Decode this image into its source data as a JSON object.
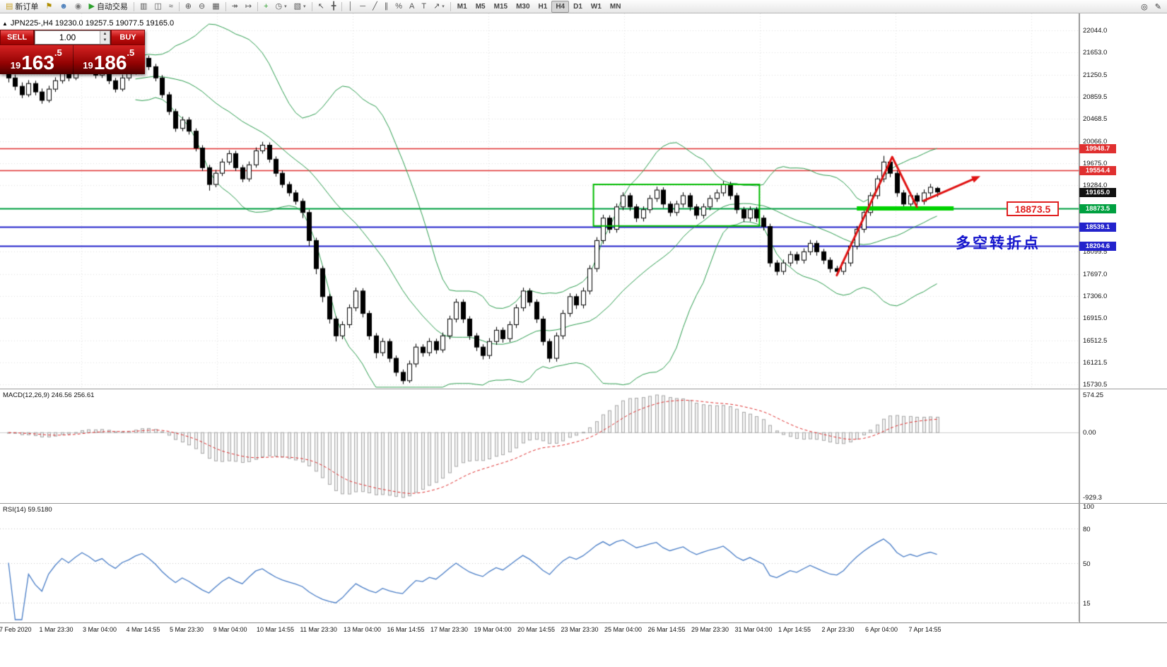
{
  "toolbar": {
    "groups": [
      {
        "items": [
          {
            "name": "new-order-button",
            "glyph": "▤",
            "color": "#c9a227",
            "label": "新订单"
          },
          {
            "name": "alerts-button",
            "glyph": "⚑",
            "color": "#b08d00"
          },
          {
            "name": "accounts-button",
            "glyph": "☻",
            "color": "#4a7ebb"
          },
          {
            "name": "market-watch-button",
            "glyph": "◉",
            "color": "#777777"
          },
          {
            "name": "auto-trading-button",
            "glyph": "▶",
            "color": "#2ca02c",
            "label": "自动交易"
          }
        ]
      },
      {
        "items": [
          {
            "name": "bar-chart-button",
            "glyph": "▥"
          },
          {
            "name": "candlestick-chart-button",
            "glyph": "◫"
          },
          {
            "name": "line-chart-button",
            "glyph": "≈"
          }
        ]
      },
      {
        "items": [
          {
            "name": "zoom-in-button",
            "glyph": "⊕"
          },
          {
            "name": "zoom-out-button",
            "glyph": "⊖"
          },
          {
            "name": "tile-windows-button",
            "glyph": "▦"
          }
        ]
      },
      {
        "items": [
          {
            "name": "auto-scroll-button",
            "glyph": "↠"
          },
          {
            "name": "chart-shift-button",
            "glyph": "↦"
          }
        ]
      },
      {
        "items": [
          {
            "name": "add-indicator-button",
            "glyph": "+",
            "color": "#2ca02c"
          },
          {
            "name": "periods-button",
            "glyph": "◷",
            "caret": true
          },
          {
            "name": "templates-button",
            "glyph": "▧",
            "caret": true
          }
        ]
      },
      {
        "items": [
          {
            "name": "cursor-button",
            "glyph": "↖"
          },
          {
            "name": "crosshair-button",
            "glyph": "╋"
          }
        ]
      },
      {
        "items": [
          {
            "name": "vertical-line-button",
            "glyph": "│"
          },
          {
            "name": "horizontal-line-button",
            "glyph": "─"
          },
          {
            "name": "trendline-button",
            "glyph": "╱"
          },
          {
            "name": "channel-button",
            "glyph": "∥"
          },
          {
            "name": "fibonacci-button",
            "glyph": "%"
          },
          {
            "name": "text-button",
            "glyph": "A"
          },
          {
            "name": "label-button",
            "glyph": "T"
          },
          {
            "name": "arrows-button",
            "glyph": "↗",
            "caret": true
          }
        ]
      }
    ],
    "timeframes": [
      {
        "label": "M1"
      },
      {
        "label": "M5"
      },
      {
        "label": "M15"
      },
      {
        "label": "M30"
      },
      {
        "label": "H1"
      },
      {
        "label": "H4"
      },
      {
        "label": "D1"
      },
      {
        "label": "W1"
      },
      {
        "label": "MN"
      }
    ],
    "active_timeframe": "H4",
    "right_icons": [
      {
        "name": "search-icon",
        "glyph": "◎"
      },
      {
        "name": "edit-icon",
        "glyph": "✎"
      }
    ]
  },
  "chart": {
    "header_text": "JPN225-,H4 19230.0 19257.5 19077.5 19165.0",
    "axis_labels": [
      "22044.0",
      "21653.0",
      "21250.5",
      "20859.5",
      "20468.5",
      "20066.0",
      "19675.0",
      "19284.0",
      "18099.5",
      "17697.0",
      "17306.0",
      "16915.0",
      "16512.5",
      "16121.5",
      "15730.5"
    ],
    "price_tags": [
      {
        "text": "19948.7",
        "bg": "#e03030"
      },
      {
        "text": "19554.4",
        "bg": "#e03030"
      },
      {
        "text": "19165.0",
        "bg": "#111111"
      },
      {
        "text": "18873.5",
        "bg": "#00a040"
      },
      {
        "text": "18539.1",
        "bg": "#2323cc"
      },
      {
        "text": "18204.6",
        "bg": "#2323cc"
      }
    ],
    "time_labels": [
      "27 Feb 2020",
      "1 Mar 23:30",
      "3 Mar 04:00",
      "4 Mar 14:55",
      "5 Mar 23:30",
      "9 Mar 04:00",
      "10 Mar 14:55",
      "11 Mar 23:30",
      "13 Mar 04:00",
      "16 Mar 14:55",
      "17 Mar 23:30",
      "19 Mar 04:00",
      "20 Mar 14:55",
      "23 Mar 23:30",
      "25 Mar 04:00",
      "26 Mar 14:55",
      "29 Mar 23:30",
      "31 Mar 04:00",
      "1 Apr 14:55",
      "2 Apr 23:30",
      "6 Apr 04:00",
      "7 Apr 14:55"
    ],
    "annotations": {
      "resistance_label": "18873.5",
      "turning_point_text": "多空转折点",
      "turning_point_color": "#1414cc",
      "green_box": {
        "from_bar": 88,
        "to_bar": 112,
        "top_price": 19300,
        "bottom_price": 18560,
        "color": "#00bb00"
      },
      "support_segment": {
        "from_bar": 127,
        "to_bar": 141.5,
        "price": 18873.5,
        "color": "#00d200",
        "width": 6
      },
      "red_zigzag": {
        "points": [
          [
            124,
            17680
          ],
          [
            132.3,
            19790
          ],
          [
            136,
            18900
          ]
        ],
        "color": "#e01212",
        "width": 3
      },
      "red_arrow": {
        "from": [
          137,
          19010
        ],
        "to": [
          145.5,
          19450
        ],
        "color": "#e01212",
        "width": 3
      },
      "hlines": [
        {
          "price": 19948.7,
          "color": "#e03030",
          "width": 1.5
        },
        {
          "price": 19554.4,
          "color": "#e03030",
          "width": 1.5
        },
        {
          "price": 18873.5,
          "color": "#00a040",
          "width": 2
        },
        {
          "price": 18539.1,
          "color": "#2323cc",
          "width": 2
        },
        {
          "price": 18204.6,
          "color": "#2323cc",
          "width": 2
        }
      ]
    }
  },
  "trade_panel": {
    "sell_label": "SELL",
    "buy_label": "BUY",
    "volume": "1.00",
    "sell_price": {
      "full": "19163.5",
      "prefix": "19",
      "big": "163",
      "suffix": ".5"
    },
    "buy_price": {
      "full": "19186.5",
      "prefix": "19",
      "big": "186",
      "suffix": ".5"
    }
  },
  "macd": {
    "label": "MACD(12,26,9) 246.56 256.61",
    "axis": [
      "574.25",
      "0.00",
      "-929.3"
    ]
  },
  "rsi": {
    "label": "RSI(14) 59.5180",
    "axis": [
      "100",
      "80",
      "50",
      "15"
    ]
  },
  "chart_data": {
    "type": "candlestick",
    "symbol": "JPN225-",
    "timeframe": "H4",
    "last_ohlc": {
      "open": 19230.0,
      "high": 19257.5,
      "low": 19077.5,
      "close": 19165.0
    },
    "price_axis_range": [
      15730.5,
      22044.0
    ],
    "overlays": {
      "bollinger_bands": {
        "period": 20,
        "deviations": 2,
        "color": "#2e9e50"
      }
    },
    "indicators": [
      {
        "type": "MACD",
        "fast": 12,
        "slow": 26,
        "signal": 9,
        "current_values": [
          246.56,
          256.61
        ],
        "axis_labels": [
          574.25,
          0.0,
          -929.3
        ]
      },
      {
        "type": "RSI",
        "period": 14,
        "current_value": 59.518,
        "axis_labels": [
          100,
          80,
          50,
          15
        ]
      }
    ],
    "horizontal_lines": [
      19948.7,
      19554.4,
      18873.5,
      18539.1,
      18204.6
    ],
    "candles_ohlc": [
      [
        21300,
        21380,
        21120,
        21200
      ],
      [
        21200,
        21260,
        20980,
        21050
      ],
      [
        21050,
        21120,
        20840,
        20900
      ],
      [
        20900,
        21160,
        20860,
        21100
      ],
      [
        21100,
        21150,
        20890,
        20950
      ],
      [
        20950,
        21010,
        20740,
        20800
      ],
      [
        20800,
        21060,
        20760,
        21000
      ],
      [
        21000,
        21210,
        20950,
        21150
      ],
      [
        21150,
        21360,
        21100,
        21300
      ],
      [
        21300,
        21350,
        21140,
        21200
      ],
      [
        21200,
        21410,
        21160,
        21350
      ],
      [
        21350,
        21560,
        21300,
        21500
      ],
      [
        21500,
        21550,
        21340,
        21400
      ],
      [
        21400,
        21450,
        21190,
        21250
      ],
      [
        21250,
        21410,
        21200,
        21350
      ],
      [
        21350,
        21400,
        21090,
        21150
      ],
      [
        21150,
        21200,
        20940,
        21000
      ],
      [
        21000,
        21260,
        20960,
        21200
      ],
      [
        21200,
        21360,
        21150,
        21300
      ],
      [
        21300,
        21510,
        21260,
        21450
      ],
      [
        21450,
        21800,
        21400,
        21550
      ],
      [
        21550,
        21600,
        21340,
        21400
      ],
      [
        21400,
        21450,
        21140,
        21200
      ],
      [
        21200,
        21250,
        20840,
        20900
      ],
      [
        20900,
        20950,
        20540,
        20600
      ],
      [
        20600,
        20650,
        20240,
        20300
      ],
      [
        20300,
        20510,
        20250,
        20450
      ],
      [
        20450,
        20500,
        20190,
        20250
      ],
      [
        20250,
        20300,
        19890,
        19950
      ],
      [
        19950,
        20000,
        19540,
        19600
      ],
      [
        19600,
        19650,
        19190,
        19300
      ],
      [
        19300,
        19560,
        19250,
        19500
      ],
      [
        19500,
        19760,
        19450,
        19700
      ],
      [
        19700,
        19910,
        19650,
        19850
      ],
      [
        19850,
        19900,
        19540,
        19600
      ],
      [
        19600,
        19650,
        19340,
        19400
      ],
      [
        19400,
        19710,
        19350,
        19650
      ],
      [
        19650,
        19960,
        19600,
        19900
      ],
      [
        19900,
        20060,
        19850,
        20000
      ],
      [
        20000,
        20050,
        19690,
        19750
      ],
      [
        19750,
        19800,
        19440,
        19500
      ],
      [
        19500,
        19550,
        19240,
        19300
      ],
      [
        19300,
        19350,
        19090,
        19150
      ],
      [
        19150,
        19200,
        18940,
        19000
      ],
      [
        19000,
        19050,
        18700,
        18800
      ],
      [
        18800,
        18850,
        18200,
        18300
      ],
      [
        18300,
        18350,
        17700,
        17800
      ],
      [
        17800,
        17850,
        17200,
        17300
      ],
      [
        17300,
        17350,
        16820,
        16900
      ],
      [
        16900,
        16950,
        16500,
        16600
      ],
      [
        16600,
        16860,
        16540,
        16800
      ],
      [
        16800,
        17160,
        16740,
        17100
      ],
      [
        17100,
        17460,
        17040,
        17400
      ],
      [
        17400,
        17450,
        16930,
        17000
      ],
      [
        17000,
        17050,
        16530,
        16600
      ],
      [
        16600,
        16650,
        16200,
        16300
      ],
      [
        16300,
        16560,
        16240,
        16500
      ],
      [
        16500,
        16550,
        16130,
        16200
      ],
      [
        16200,
        16250,
        15880,
        15950
      ],
      [
        15950,
        16000,
        15740,
        15800
      ],
      [
        15800,
        16160,
        15760,
        16100
      ],
      [
        16100,
        16460,
        16040,
        16400
      ],
      [
        16400,
        16450,
        16230,
        16300
      ],
      [
        16300,
        16560,
        16240,
        16500
      ],
      [
        16500,
        16550,
        16280,
        16350
      ],
      [
        16350,
        16660,
        16300,
        16600
      ],
      [
        16600,
        16960,
        16540,
        16900
      ],
      [
        16900,
        17260,
        16840,
        17200
      ],
      [
        17200,
        17250,
        16830,
        16900
      ],
      [
        16900,
        16950,
        16530,
        16600
      ],
      [
        16600,
        16650,
        16330,
        16400
      ],
      [
        16400,
        16450,
        16180,
        16250
      ],
      [
        16250,
        16560,
        16190,
        16500
      ],
      [
        16500,
        16760,
        16440,
        16700
      ],
      [
        16700,
        16750,
        16480,
        16550
      ],
      [
        16550,
        16860,
        16490,
        16800
      ],
      [
        16800,
        17160,
        16740,
        17100
      ],
      [
        17100,
        17460,
        17040,
        17400
      ],
      [
        17400,
        17450,
        17130,
        17200
      ],
      [
        17200,
        17250,
        16830,
        16900
      ],
      [
        16900,
        16950,
        16430,
        16500
      ],
      [
        16500,
        16550,
        16130,
        16200
      ],
      [
        16200,
        16660,
        16140,
        16600
      ],
      [
        16600,
        17060,
        16540,
        17000
      ],
      [
        17000,
        17360,
        16940,
        17300
      ],
      [
        17300,
        17350,
        17080,
        17150
      ],
      [
        17150,
        17460,
        17090,
        17400
      ],
      [
        17400,
        17860,
        17340,
        17800
      ],
      [
        17800,
        18360,
        17740,
        18300
      ],
      [
        18300,
        18760,
        18240,
        18700
      ],
      [
        18700,
        18750,
        18430,
        18500
      ],
      [
        18500,
        18960,
        18440,
        18900
      ],
      [
        18900,
        19160,
        18840,
        19100
      ],
      [
        19100,
        19150,
        18830,
        18900
      ],
      [
        18900,
        18950,
        18630,
        18700
      ],
      [
        18700,
        18910,
        18640,
        18850
      ],
      [
        18850,
        19110,
        18790,
        19050
      ],
      [
        19050,
        19260,
        18990,
        19200
      ],
      [
        19200,
        19250,
        18880,
        18950
      ],
      [
        18950,
        19000,
        18730,
        18800
      ],
      [
        18800,
        19010,
        18740,
        18950
      ],
      [
        18950,
        19160,
        18890,
        19100
      ],
      [
        19100,
        19150,
        18830,
        18900
      ],
      [
        18900,
        18950,
        18680,
        18750
      ],
      [
        18750,
        18960,
        18690,
        18900
      ],
      [
        18900,
        19110,
        18840,
        19050
      ],
      [
        19050,
        19210,
        18990,
        19150
      ],
      [
        19150,
        19360,
        19090,
        19300
      ],
      [
        19300,
        19350,
        19030,
        19100
      ],
      [
        19100,
        19150,
        18780,
        18850
      ],
      [
        18850,
        18900,
        18630,
        18700
      ],
      [
        18700,
        18910,
        18640,
        18850
      ],
      [
        18850,
        18900,
        18630,
        18700
      ],
      [
        18700,
        18750,
        18480,
        18550
      ],
      [
        18550,
        18600,
        17830,
        17900
      ],
      [
        17900,
        17950,
        17680,
        17750
      ],
      [
        17750,
        17960,
        17690,
        17900
      ],
      [
        17900,
        18110,
        17840,
        18050
      ],
      [
        18050,
        18100,
        17880,
        17950
      ],
      [
        17950,
        18160,
        17890,
        18100
      ],
      [
        18100,
        18310,
        18040,
        18250
      ],
      [
        18250,
        18300,
        18030,
        18100
      ],
      [
        18100,
        18150,
        17880,
        17950
      ],
      [
        17950,
        18000,
        17730,
        17800
      ],
      [
        17800,
        17850,
        17680,
        17750
      ],
      [
        17750,
        17960,
        17690,
        17900
      ],
      [
        17900,
        18260,
        17840,
        18200
      ],
      [
        18200,
        18560,
        18140,
        18500
      ],
      [
        18500,
        18860,
        18440,
        18800
      ],
      [
        18800,
        19160,
        18740,
        19100
      ],
      [
        19100,
        19460,
        19040,
        19400
      ],
      [
        19400,
        19810,
        19340,
        19700
      ],
      [
        19700,
        19750,
        19430,
        19500
      ],
      [
        19500,
        19550,
        19080,
        19150
      ],
      [
        19150,
        19200,
        18880,
        18950
      ],
      [
        18950,
        19160,
        18890,
        19100
      ],
      [
        19100,
        19150,
        18930,
        19000
      ],
      [
        19000,
        19210,
        18940,
        19150
      ],
      [
        19150,
        19310,
        19090,
        19250
      ],
      [
        19230,
        19257.5,
        19077.5,
        19165
      ]
    ]
  }
}
